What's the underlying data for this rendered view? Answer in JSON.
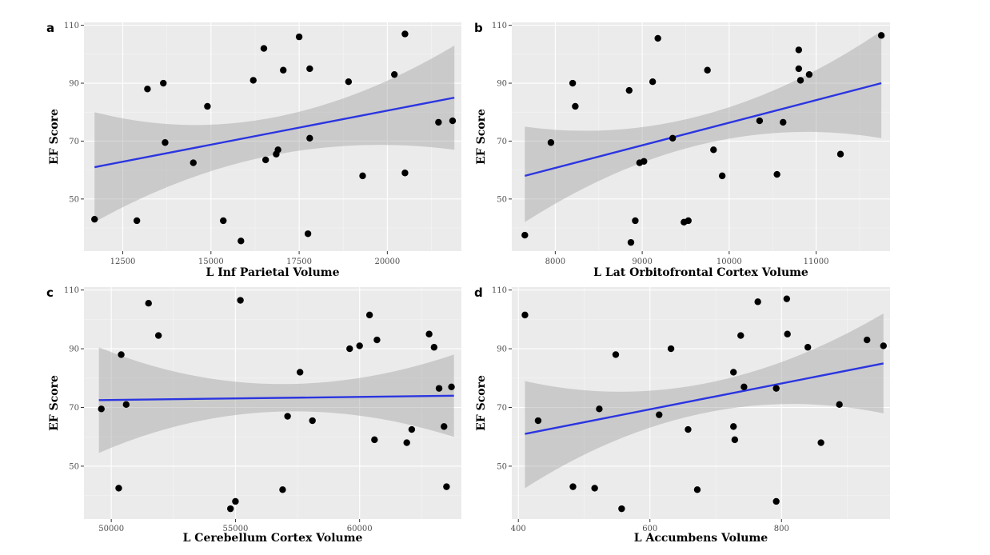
{
  "chart_data": [
    {
      "type": "scatter",
      "panel_label": "a",
      "xlabel": "L Inf Parietal Volume",
      "ylabel": "EF Score",
      "xlim": [
        11400,
        22100
      ],
      "ylim": [
        32,
        111
      ],
      "xticks": [
        12500,
        15000,
        17500,
        20000
      ],
      "xtick_labels": [
        "12500",
        "15000",
        "17500",
        "20000"
      ],
      "yticks": [
        50,
        70,
        90,
        110
      ],
      "ytick_labels": [
        "50",
        "70",
        "90",
        "110"
      ],
      "grid": true,
      "fit": {
        "method": "lm",
        "color": "#2b35e0",
        "x": [
          11700,
          21900
        ],
        "y": [
          61,
          85
        ],
        "ci_lower": [
          42,
          67
        ],
        "ci_upper": [
          80,
          103
        ],
        "ci_mid_x": 16700,
        "ci_mid_lower": 65,
        "ci_mid_upper": 78
      },
      "points": [
        {
          "x": 11700,
          "y": 43
        },
        {
          "x": 12900,
          "y": 42.5
        },
        {
          "x": 13200,
          "y": 88
        },
        {
          "x": 13650,
          "y": 90
        },
        {
          "x": 13700,
          "y": 69.5
        },
        {
          "x": 14500,
          "y": 62.5
        },
        {
          "x": 14900,
          "y": 82
        },
        {
          "x": 15350,
          "y": 42.5
        },
        {
          "x": 15850,
          "y": 35.5
        },
        {
          "x": 16200,
          "y": 91
        },
        {
          "x": 16500,
          "y": 102
        },
        {
          "x": 16550,
          "y": 63.5
        },
        {
          "x": 16850,
          "y": 65.5
        },
        {
          "x": 16900,
          "y": 67
        },
        {
          "x": 17050,
          "y": 94.5
        },
        {
          "x": 17500,
          "y": 106
        },
        {
          "x": 17750,
          "y": 38
        },
        {
          "x": 17800,
          "y": 95
        },
        {
          "x": 17800,
          "y": 71
        },
        {
          "x": 18900,
          "y": 90.5
        },
        {
          "x": 19300,
          "y": 58
        },
        {
          "x": 20200,
          "y": 93
        },
        {
          "x": 20500,
          "y": 107
        },
        {
          "x": 20500,
          "y": 59
        },
        {
          "x": 21450,
          "y": 76.5
        },
        {
          "x": 21850,
          "y": 77
        }
      ]
    },
    {
      "type": "scatter",
      "panel_label": "b",
      "xlabel": "L Lat Orbitofrontal Cortex Volume",
      "ylabel": "EF Score",
      "xlim": [
        7500,
        11850
      ],
      "ylim": [
        32,
        111
      ],
      "xticks": [
        8000,
        9000,
        10000,
        11000
      ],
      "xtick_labels": [
        "8000",
        "9000",
        "10000",
        "11000"
      ],
      "yticks": [
        50,
        70,
        90,
        110
      ],
      "ytick_labels": [
        "50",
        "70",
        "90",
        "110"
      ],
      "grid": true,
      "fit": {
        "method": "lm",
        "color": "#2b35e0",
        "x": [
          7650,
          11750
        ],
        "y": [
          58,
          90
        ],
        "ci_lower": [
          42,
          71
        ],
        "ci_upper": [
          75,
          108
        ],
        "ci_mid_x": 9700,
        "ci_mid_lower": 69,
        "ci_mid_upper": 79
      },
      "points": [
        {
          "x": 7650,
          "y": 37.5
        },
        {
          "x": 7950,
          "y": 69.5
        },
        {
          "x": 8200,
          "y": 90
        },
        {
          "x": 8230,
          "y": 82
        },
        {
          "x": 8850,
          "y": 87.5
        },
        {
          "x": 8870,
          "y": 35
        },
        {
          "x": 8920,
          "y": 42.5
        },
        {
          "x": 8970,
          "y": 62.5
        },
        {
          "x": 9020,
          "y": 63
        },
        {
          "x": 9120,
          "y": 90.5
        },
        {
          "x": 9180,
          "y": 105.5
        },
        {
          "x": 9350,
          "y": 71
        },
        {
          "x": 9480,
          "y": 42
        },
        {
          "x": 9530,
          "y": 42.5
        },
        {
          "x": 9750,
          "y": 94.5
        },
        {
          "x": 9820,
          "y": 67
        },
        {
          "x": 9920,
          "y": 58
        },
        {
          "x": 10350,
          "y": 77
        },
        {
          "x": 10550,
          "y": 58.5
        },
        {
          "x": 10620,
          "y": 76.5
        },
        {
          "x": 10800,
          "y": 101.5
        },
        {
          "x": 10800,
          "y": 95
        },
        {
          "x": 10820,
          "y": 91
        },
        {
          "x": 10920,
          "y": 93
        },
        {
          "x": 11280,
          "y": 65.5
        },
        {
          "x": 11750,
          "y": 106.5
        }
      ]
    },
    {
      "type": "scatter",
      "panel_label": "c",
      "xlabel": "L Cerebellum Cortex Volume",
      "ylabel": "EF Score",
      "xlim": [
        48900,
        64100
      ],
      "ylim": [
        32,
        111
      ],
      "xticks": [
        50000,
        55000,
        60000
      ],
      "xtick_labels": [
        "50000",
        "55000",
        "60000"
      ],
      "yticks": [
        50,
        70,
        90,
        110
      ],
      "ytick_labels": [
        "50",
        "70",
        "90",
        "110"
      ],
      "grid": true,
      "fit": {
        "method": "lm",
        "color": "#2b35e0",
        "x": [
          49500,
          63800
        ],
        "y": [
          72.5,
          74
        ],
        "ci_lower": [
          54.5,
          60
        ],
        "ci_upper": [
          90.5,
          88
        ],
        "ci_mid_x": 56500,
        "ci_mid_lower": 68.5,
        "ci_mid_upper": 78
      },
      "points": [
        {
          "x": 49600,
          "y": 69.5
        },
        {
          "x": 50300,
          "y": 42.5
        },
        {
          "x": 50400,
          "y": 88
        },
        {
          "x": 50600,
          "y": 71
        },
        {
          "x": 51500,
          "y": 105.5
        },
        {
          "x": 51900,
          "y": 94.5
        },
        {
          "x": 54800,
          "y": 35.5
        },
        {
          "x": 55000,
          "y": 38
        },
        {
          "x": 55200,
          "y": 106.5
        },
        {
          "x": 56900,
          "y": 42
        },
        {
          "x": 57100,
          "y": 67
        },
        {
          "x": 57600,
          "y": 82
        },
        {
          "x": 58100,
          "y": 65.5
        },
        {
          "x": 59600,
          "y": 90
        },
        {
          "x": 60000,
          "y": 91
        },
        {
          "x": 60400,
          "y": 101.5
        },
        {
          "x": 60600,
          "y": 59
        },
        {
          "x": 60700,
          "y": 93
        },
        {
          "x": 61900,
          "y": 58
        },
        {
          "x": 62100,
          "y": 62.5
        },
        {
          "x": 62800,
          "y": 95
        },
        {
          "x": 63000,
          "y": 90.5
        },
        {
          "x": 63200,
          "y": 76.5
        },
        {
          "x": 63400,
          "y": 63.5
        },
        {
          "x": 63500,
          "y": 43
        },
        {
          "x": 63700,
          "y": 77
        }
      ]
    },
    {
      "type": "scatter",
      "panel_label": "d",
      "xlabel": "L Accumbens Volume",
      "ylabel": "EF Score",
      "xlim": [
        390,
        965
      ],
      "ylim": [
        32,
        111
      ],
      "xticks": [
        400,
        600,
        800
      ],
      "xtick_labels": [
        "400",
        "600",
        "800"
      ],
      "yticks": [
        50,
        70,
        90,
        110
      ],
      "ytick_labels": [
        "50",
        "70",
        "90",
        "110"
      ],
      "grid": true,
      "fit": {
        "method": "lm",
        "color": "#2b35e0",
        "x": [
          410,
          955
        ],
        "y": [
          61,
          85
        ],
        "ci_lower": [
          42.5,
          68
        ],
        "ci_upper": [
          79,
          102
        ],
        "ci_mid_x": 680,
        "ci_mid_lower": 68,
        "ci_mid_upper": 78
      },
      "points": [
        {
          "x": 410,
          "y": 101.5
        },
        {
          "x": 430,
          "y": 65.5
        },
        {
          "x": 483,
          "y": 43
        },
        {
          "x": 516,
          "y": 42.5
        },
        {
          "x": 523,
          "y": 69.5
        },
        {
          "x": 548,
          "y": 88
        },
        {
          "x": 557,
          "y": 35.5
        },
        {
          "x": 614,
          "y": 67.5
        },
        {
          "x": 632,
          "y": 90
        },
        {
          "x": 658,
          "y": 62.5
        },
        {
          "x": 672,
          "y": 42
        },
        {
          "x": 727,
          "y": 82
        },
        {
          "x": 727,
          "y": 63.5
        },
        {
          "x": 729,
          "y": 59
        },
        {
          "x": 738,
          "y": 94.5
        },
        {
          "x": 743,
          "y": 77
        },
        {
          "x": 764,
          "y": 106
        },
        {
          "x": 792,
          "y": 76.5
        },
        {
          "x": 792,
          "y": 38
        },
        {
          "x": 808,
          "y": 107
        },
        {
          "x": 809,
          "y": 95
        },
        {
          "x": 840,
          "y": 90.5
        },
        {
          "x": 860,
          "y": 58
        },
        {
          "x": 888,
          "y": 71
        },
        {
          "x": 930,
          "y": 93
        },
        {
          "x": 955,
          "y": 91
        }
      ]
    }
  ]
}
